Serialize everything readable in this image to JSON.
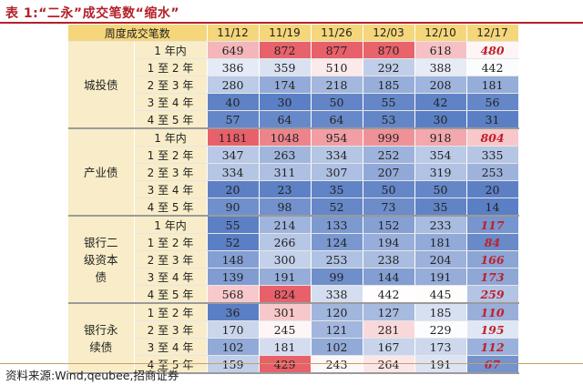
{
  "title": "表 1:“二永”成交笔数“缩水”",
  "source": "资料来源:Wind,qeubee,招商证券",
  "header": {
    "corner": "周度成交笔数",
    "dates": [
      "11/12",
      "11/19",
      "11/26",
      "12/03",
      "12/10",
      "12/17"
    ]
  },
  "groups": [
    {
      "name": "城投债",
      "rows": [
        {
          "bucket": "1 年内",
          "values": [
            "649",
            "872",
            "877",
            "870",
            "618",
            "480"
          ]
        },
        {
          "bucket": "1 至 2 年",
          "values": [
            "386",
            "359",
            "510",
            "292",
            "388",
            "442"
          ]
        },
        {
          "bucket": "2 至 3 年",
          "values": [
            "280",
            "174",
            "218",
            "185",
            "208",
            "181"
          ]
        },
        {
          "bucket": "3 至 4 年",
          "values": [
            "40",
            "30",
            "50",
            "55",
            "42",
            "56"
          ]
        },
        {
          "bucket": "4 至 5 年",
          "values": [
            "57",
            "64",
            "64",
            "53",
            "30",
            "31"
          ]
        }
      ]
    },
    {
      "name": "产业债",
      "rows": [
        {
          "bucket": "1 年内",
          "values": [
            "1181",
            "1048",
            "954",
            "999",
            "918",
            "804"
          ]
        },
        {
          "bucket": "1 至 2 年",
          "values": [
            "347",
            "263",
            "334",
            "252",
            "354",
            "335"
          ]
        },
        {
          "bucket": "2 至 3 年",
          "values": [
            "334",
            "311",
            "307",
            "207",
            "319",
            "253"
          ]
        },
        {
          "bucket": "3 至 4 年",
          "values": [
            "20",
            "23",
            "35",
            "50",
            "50",
            "20"
          ]
        },
        {
          "bucket": "4 至 5 年",
          "values": [
            "90",
            "98",
            "52",
            "73",
            "35",
            "14"
          ]
        }
      ]
    },
    {
      "name": "银行二级资本债",
      "rows": [
        {
          "bucket": "1 年内",
          "values": [
            "55",
            "214",
            "133",
            "152",
            "233",
            "117"
          ]
        },
        {
          "bucket": "1 至 2 年",
          "values": [
            "52",
            "266",
            "124",
            "194",
            "181",
            "84"
          ]
        },
        {
          "bucket": "2 至 3 年",
          "values": [
            "148",
            "300",
            "253",
            "238",
            "204",
            "166"
          ]
        },
        {
          "bucket": "3 至 4 年",
          "values": [
            "139",
            "191",
            "99",
            "144",
            "191",
            "173"
          ]
        },
        {
          "bucket": "4 至 5 年",
          "values": [
            "568",
            "824",
            "338",
            "442",
            "445",
            "259"
          ]
        }
      ]
    },
    {
      "name": "银行永续债",
      "rows": [
        {
          "bucket": "1 至 2 年",
          "values": [
            "36",
            "301",
            "120",
            "127",
            "185",
            "110"
          ]
        },
        {
          "bucket": "2 至 3 年",
          "values": [
            "170",
            "245",
            "121",
            "281",
            "229",
            "195"
          ]
        },
        {
          "bucket": "3 至 4 年",
          "values": [
            "102",
            "181",
            "102",
            "167",
            "173",
            "112"
          ]
        },
        {
          "bucket": "4 至 5 年",
          "values": [
            "159",
            "429",
            "243",
            "264",
            "191",
            "67"
          ]
        }
      ]
    }
  ],
  "highlighted_cells": [
    {
      "group": "城投债",
      "bucket": "1 年内",
      "date": "12/17"
    },
    {
      "group": "产业债",
      "bucket": "1 年内",
      "date": "12/17"
    },
    {
      "group": "银行二级资本债",
      "bucket": "1 年内",
      "date": "12/17"
    },
    {
      "group": "银行二级资本债",
      "bucket": "1 至 2 年",
      "date": "12/17"
    },
    {
      "group": "银行二级资本债",
      "bucket": "2 至 3 年",
      "date": "12/17"
    },
    {
      "group": "银行二级资本债",
      "bucket": "3 至 4 年",
      "date": "12/17"
    },
    {
      "group": "银行二级资本债",
      "bucket": "4 至 5 年",
      "date": "12/17"
    },
    {
      "group": "银行永续债",
      "bucket": "1 至 2 年",
      "date": "12/17"
    },
    {
      "group": "银行永续债",
      "bucket": "2 至 3 年",
      "date": "12/17"
    },
    {
      "group": "银行永续债",
      "bucket": "3 至 4 年",
      "date": "12/17"
    },
    {
      "group": "银行永续债",
      "bucket": "4 至 5 年",
      "date": "12/17"
    }
  ],
  "colors": {
    "title": "#b4202a",
    "header_bg": "#f5d67a",
    "group_bg": "#f8edc8",
    "heat_low": "#5b7fc4",
    "heat_mid": "#ffffff",
    "heat_high": "#e8606a",
    "highlight_text": "#c0202a"
  }
}
